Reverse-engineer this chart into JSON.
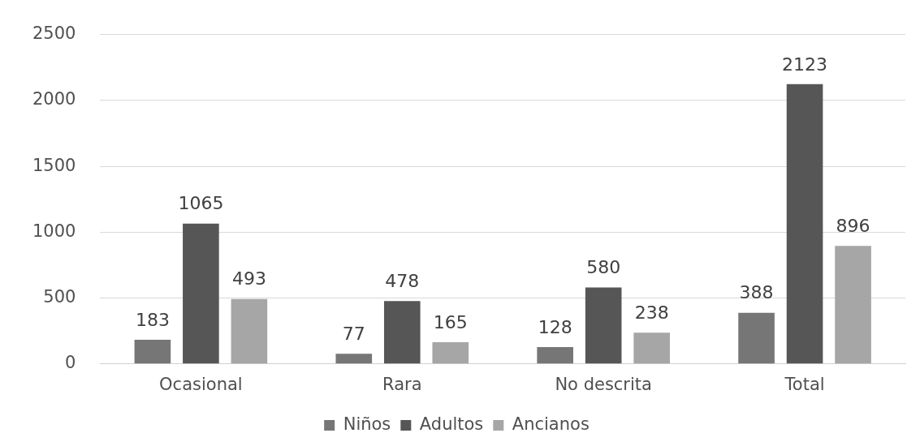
{
  "chart_data": {
    "type": "bar",
    "categories": [
      "Ocasional",
      "Rara",
      "No descrita",
      "Total"
    ],
    "series": [
      {
        "name": "Niños",
        "color": "#767676",
        "values": [
          183,
          77,
          128,
          388
        ]
      },
      {
        "name": "Adultos",
        "color": "#565656",
        "values": [
          1065,
          478,
          580,
          2123
        ]
      },
      {
        "name": "Ancianos",
        "color": "#a6a6a6",
        "values": [
          493,
          165,
          238,
          896
        ]
      }
    ],
    "ylim": [
      0,
      2500
    ],
    "yticks": [
      0,
      500,
      1000,
      1500,
      2000,
      2500
    ],
    "grid": "y",
    "legend": "bottom",
    "data_labels": true
  }
}
